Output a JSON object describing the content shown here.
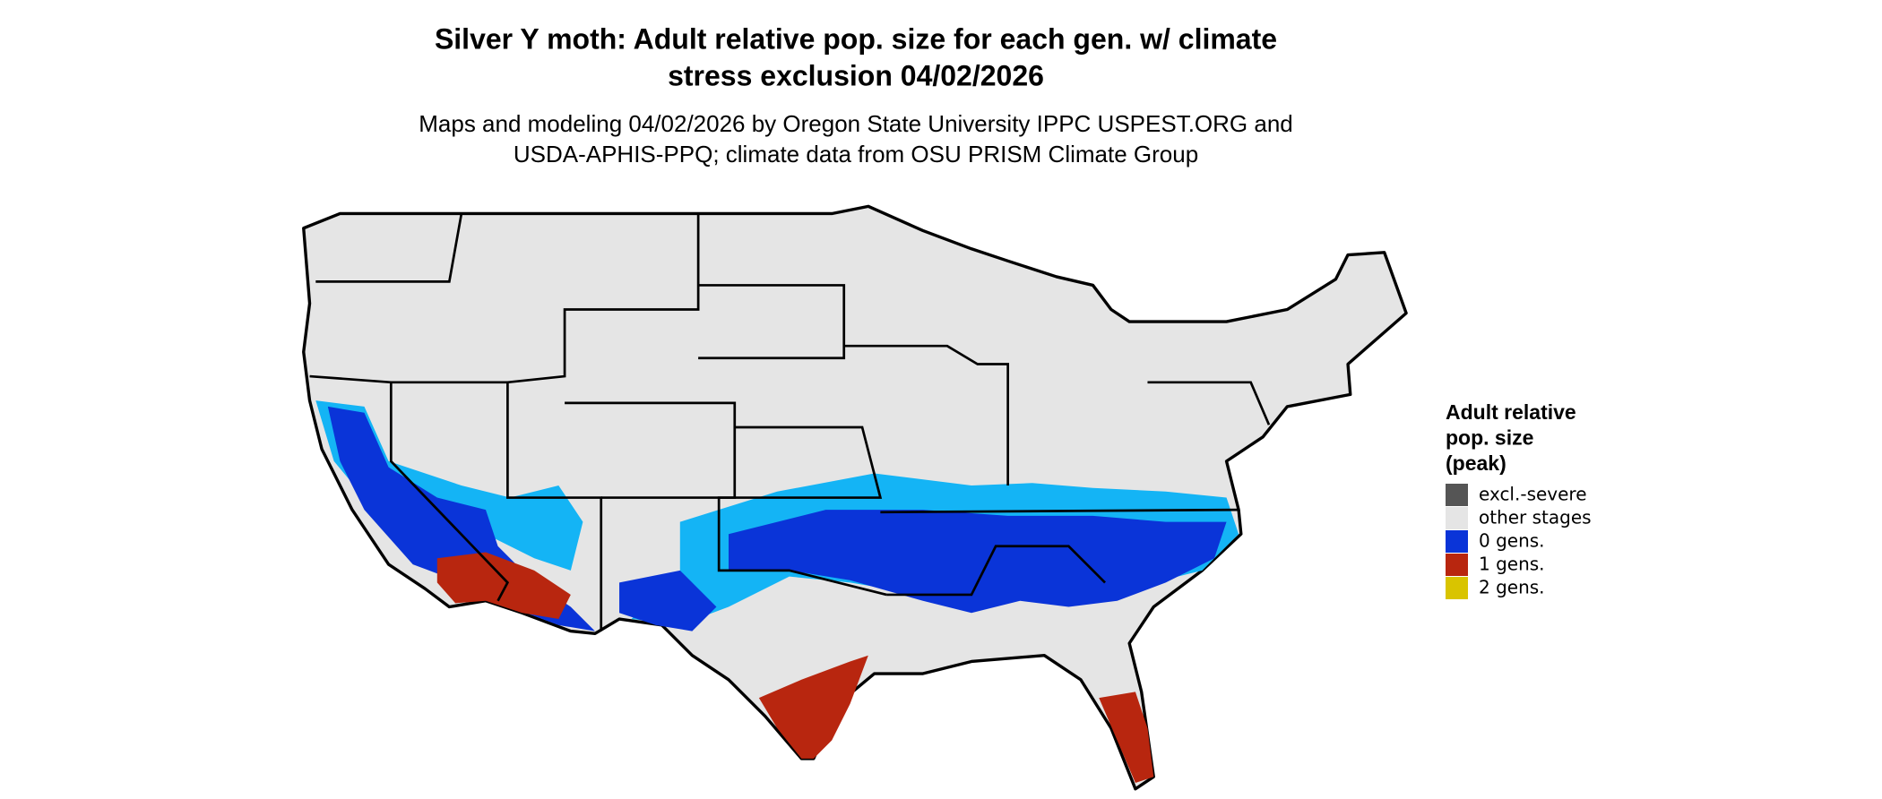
{
  "title": [
    "Silver Y moth: Adult relative pop. size for each gen. w/ climate",
    "stress exclusion 04/02/2026"
  ],
  "subtitle": [
    "Maps and modeling 04/02/2026 by Oregon State University IPPC USPEST.ORG and",
    "USDA-APHIS-PPQ; climate data from OSU PRISM Climate Group"
  ],
  "legend": {
    "title": [
      "Adult relative",
      "pop. size",
      "(peak)"
    ],
    "items": [
      {
        "label": "excl.-severe",
        "color": "#555555"
      },
      {
        "label": "other stages",
        "color": "#e5e5e5"
      },
      {
        "label": "0 gens.",
        "color": "#0a34d8"
      },
      {
        "label": "1 gens.",
        "color": "#b8260f"
      },
      {
        "label": "2 gens.",
        "color": "#d9c400"
      }
    ]
  }
}
